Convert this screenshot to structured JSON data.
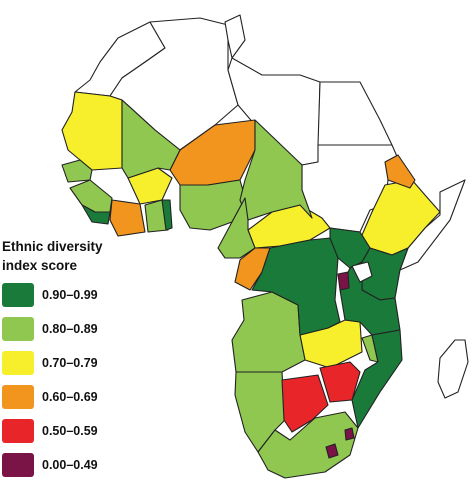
{
  "legend": {
    "title_line1": "Ethnic diversity",
    "title_line2": "index score",
    "items": [
      {
        "label": "0.90–0.99",
        "color": "#1a7a3a"
      },
      {
        "label": "0.80–0.89",
        "color": "#8fc751"
      },
      {
        "label": "0.70–0.79",
        "color": "#f7ef2c"
      },
      {
        "label": "0.60–0.69",
        "color": "#f2951f"
      },
      {
        "label": "0.50–0.59",
        "color": "#e8262a"
      },
      {
        "label": "0.00–0.49",
        "color": "#7a1446"
      }
    ]
  },
  "no_data_color": "#ffffff"
}
